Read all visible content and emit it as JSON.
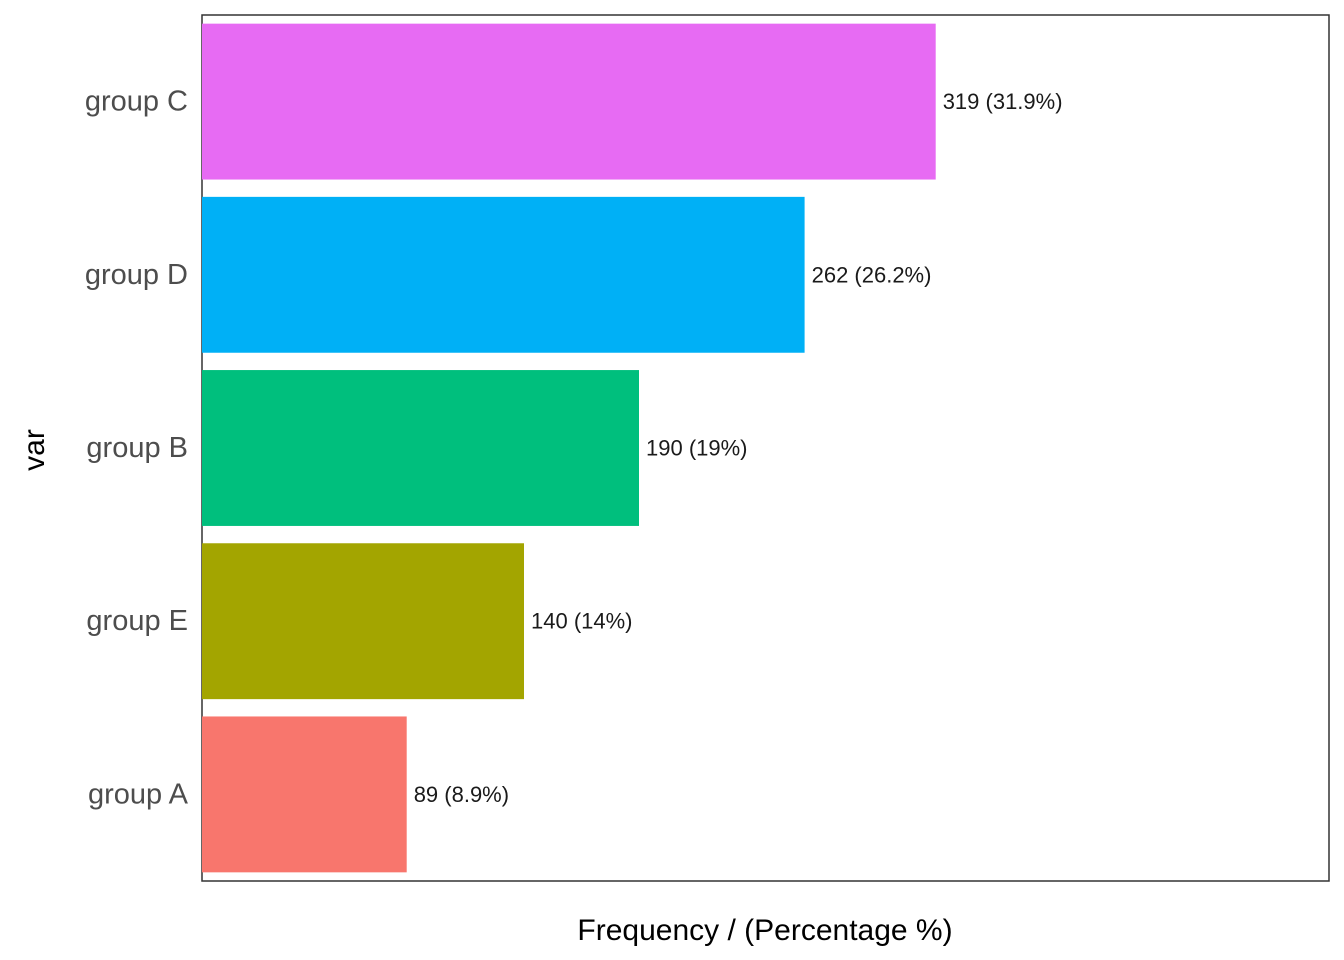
{
  "chart_data": {
    "type": "bar",
    "orientation": "horizontal",
    "xlabel": "Frequency / (Percentage %)",
    "ylabel": "var",
    "categories": [
      "group C",
      "group D",
      "group B",
      "group E",
      "group A"
    ],
    "values": [
      319,
      262,
      190,
      140,
      89
    ],
    "percentages": [
      31.9,
      26.2,
      19,
      14,
      8.9
    ],
    "data_labels": [
      "319 (31.9%)",
      "262 (26.2%)",
      "190 (19%)",
      "140 (14%)",
      "89 (8.9%)"
    ],
    "colors": [
      "#E76BF3",
      "#00B0F6",
      "#00BF7D",
      "#A3A500",
      "#F8766D"
    ],
    "xlim": [
      0,
      490
    ],
    "grid": false,
    "legend": "none"
  }
}
